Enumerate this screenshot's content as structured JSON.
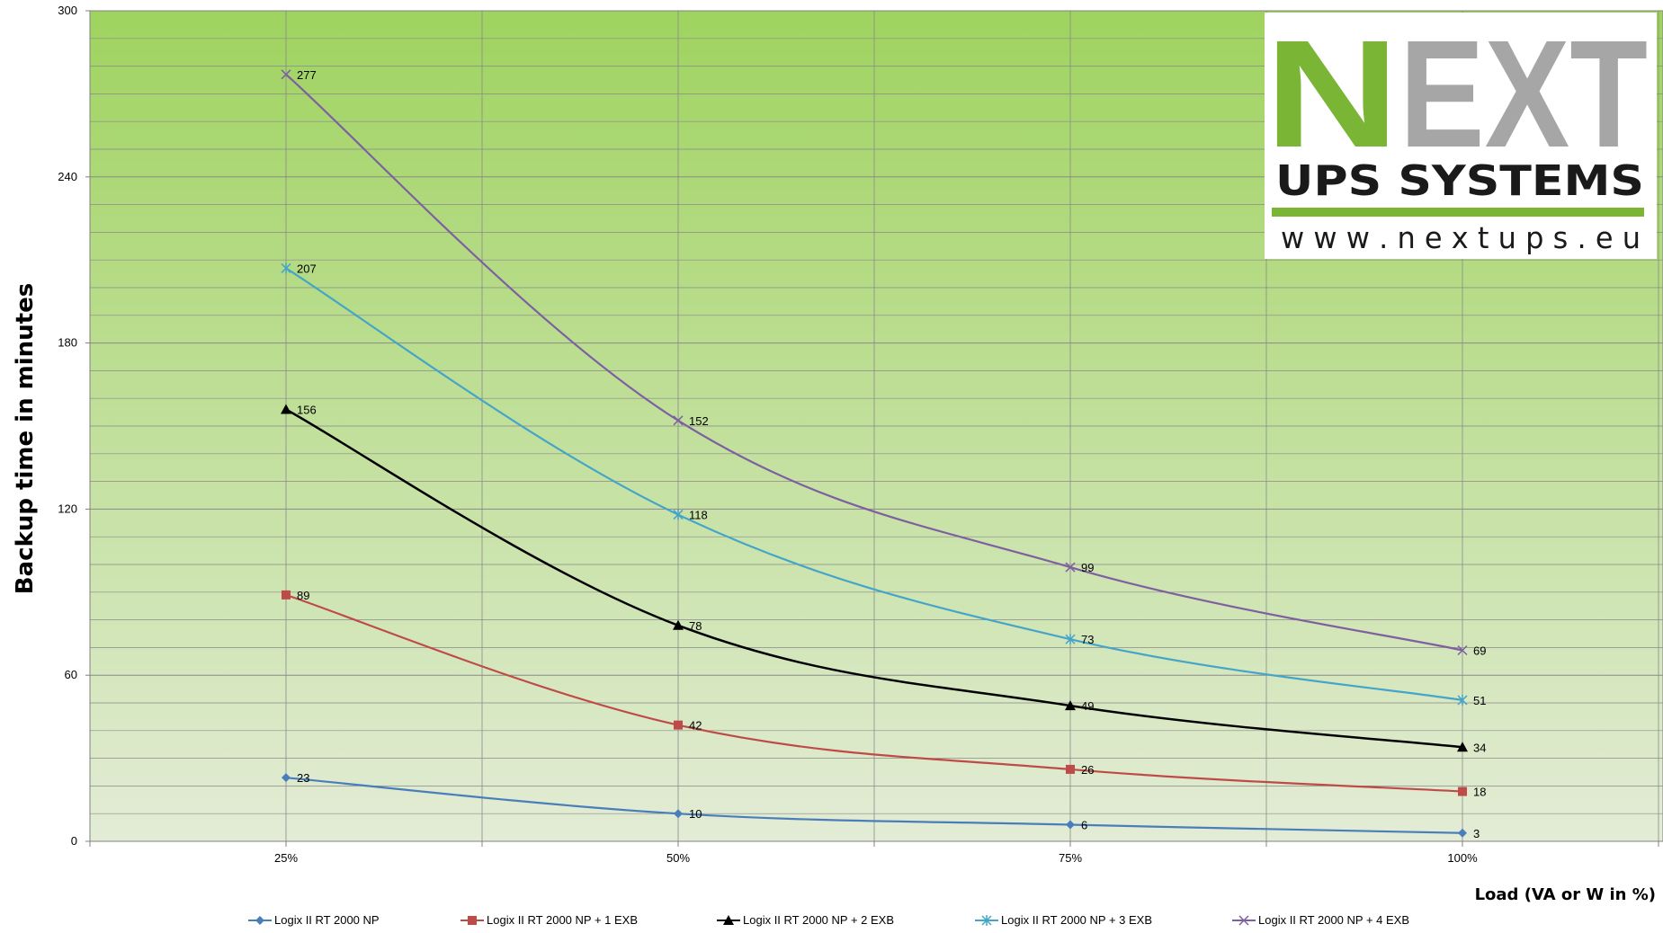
{
  "chart_data": {
    "type": "line",
    "categories": [
      "25%",
      "50%",
      "75%",
      "100%"
    ],
    "ylabel": "Backup time in minutes",
    "xlabel": "Load (VA or W in %)",
    "ylim": [
      0,
      300
    ],
    "yticks": [
      0,
      60,
      120,
      180,
      240,
      300
    ],
    "grid": true,
    "legend_position": "bottom",
    "series": [
      {
        "name": "Logix II RT 2000 NP",
        "values": [
          23,
          10,
          6,
          3
        ],
        "color": "#4a7ebb",
        "marker": "diamond"
      },
      {
        "name": "Logix II RT 2000 NP + 1 EXB",
        "values": [
          89,
          42,
          26,
          18
        ],
        "color": "#be4b48",
        "marker": "square"
      },
      {
        "name": "Logix II RT 2000 NP + 2 EXB",
        "values": [
          156,
          78,
          49,
          34
        ],
        "color": "#000000",
        "marker": "triangle"
      },
      {
        "name": "Logix II RT 2000 NP + 3 EXB",
        "values": [
          207,
          118,
          73,
          51
        ],
        "color": "#45a5c9",
        "marker": "star"
      },
      {
        "name": "Logix II RT 2000 NP + 4 EXB",
        "values": [
          277,
          152,
          99,
          69
        ],
        "color": "#7e60a1",
        "marker": "x"
      }
    ]
  },
  "logo": {
    "brand": "NEXT",
    "tagline": "UPS SYSTEMS",
    "url": "w w w . n e x t u p s . e u",
    "green": "#7ab536",
    "gray": "#a6a6a6"
  },
  "colors": {
    "plot_top": "#9fd35f",
    "plot_bottom": "#e3ecd6",
    "grid": "#8a8a8a"
  }
}
